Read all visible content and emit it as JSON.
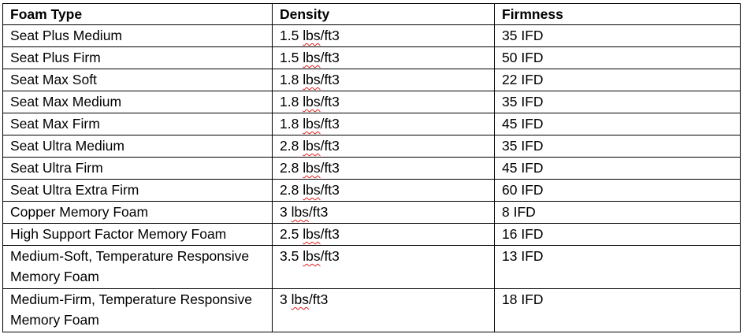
{
  "table": {
    "headers": [
      "Foam Type",
      "Density",
      "Firmness"
    ],
    "rows": [
      {
        "foam_type": "Seat Plus Medium",
        "density_num": "1.5",
        "density_unit": "lbs",
        "density_rest": "/ft3",
        "firmness": "35 IFD"
      },
      {
        "foam_type": "Seat Plus Firm",
        "density_num": "1.5",
        "density_unit": "lbs",
        "density_rest": "/ft3",
        "firmness": "50 IFD"
      },
      {
        "foam_type": "Seat Max Soft",
        "density_num": "1.8",
        "density_unit": "lbs",
        "density_rest": "/ft3",
        "firmness": "22 IFD"
      },
      {
        "foam_type": "Seat Max Medium",
        "density_num": "1.8",
        "density_unit": "lbs",
        "density_rest": "/ft3",
        "firmness": "35 IFD"
      },
      {
        "foam_type": "Seat Max Firm",
        "density_num": "1.8",
        "density_unit": "lbs",
        "density_rest": "/ft3",
        "firmness": "45 IFD"
      },
      {
        "foam_type": "Seat Ultra Medium",
        "density_num": "2.8",
        "density_unit": "lbs",
        "density_rest": "/ft3",
        "firmness": "35 IFD"
      },
      {
        "foam_type": "Seat Ultra Firm",
        "density_num": "2.8",
        "density_unit": "lbs",
        "density_rest": "/ft3",
        "firmness": "45 IFD"
      },
      {
        "foam_type": "Seat Ultra Extra Firm",
        "density_num": "2.8",
        "density_unit": "lbs",
        "density_rest": "/ft3",
        "firmness": "60 IFD"
      },
      {
        "foam_type": "Copper Memory Foam",
        "density_num": "3",
        "density_unit": "lbs",
        "density_rest": "/ft3",
        "firmness": "8 IFD"
      },
      {
        "foam_type": "High Support Factor Memory Foam",
        "density_num": "2.5",
        "density_unit": "lbs",
        "density_rest": "/ft3",
        "firmness": "16 IFD"
      },
      {
        "foam_type": "Medium-Soft, Temperature Responsive Memory Foam",
        "density_num": "3.5",
        "density_unit": "lbs",
        "density_rest": "/ft3",
        "firmness": "13 IFD"
      },
      {
        "foam_type": "Medium-Firm, Temperature Responsive Memory Foam",
        "density_num": "3",
        "density_unit": "lbs",
        "density_rest": "/ft3",
        "firmness": "18 IFD"
      }
    ]
  },
  "colors": {
    "border": "#000000",
    "spellcheck_underline": "#e02020",
    "background": "#ffffff"
  }
}
